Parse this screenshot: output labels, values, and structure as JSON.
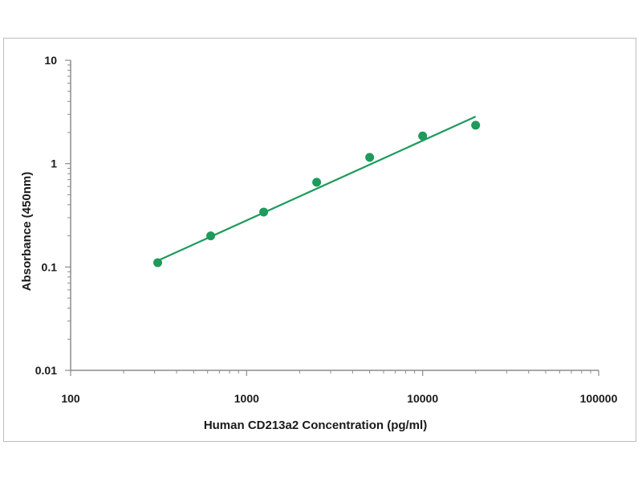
{
  "chart_data": {
    "type": "scatter",
    "title": "",
    "xlabel": "Human CD213a2 Concentration (pg/ml)",
    "ylabel": "Absorbance (450nm)",
    "xscale": "log",
    "yscale": "log",
    "xlim": [
      100,
      100000
    ],
    "ylim": [
      0.01,
      10
    ],
    "x_tick_labels": [
      "100",
      "1000",
      "10000",
      "100000"
    ],
    "y_tick_labels": [
      "0.01",
      "0.1",
      "1",
      "10"
    ],
    "grid": false,
    "legend": "none",
    "series": [
      {
        "x": [
          312.5,
          625,
          1250,
          2500,
          5000,
          10000,
          20000
        ],
        "y": [
          0.11,
          0.2,
          0.34,
          0.66,
          1.15,
          1.85,
          2.35
        ],
        "marker_color": "#1e9a5c"
      }
    ],
    "fit_line": {
      "x": [
        312.5,
        20000
      ],
      "y": [
        0.115,
        2.85
      ],
      "color": "#1e9a5c"
    }
  }
}
